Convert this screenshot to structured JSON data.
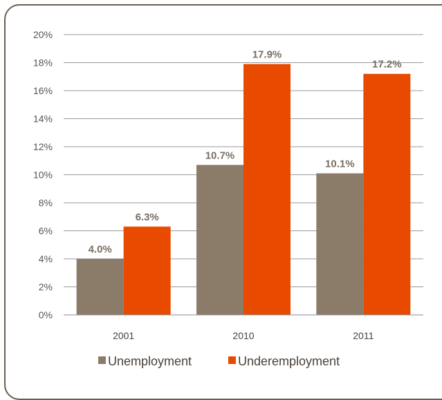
{
  "chart_data": {
    "type": "bar",
    "categories": [
      "2001",
      "2010",
      "2011"
    ],
    "series": [
      {
        "name": "Unemployment",
        "values": [
          4.0,
          10.7,
          10.1
        ],
        "labels": [
          "4.0%",
          "10.7%",
          "10.1%"
        ],
        "color": "#8b7b69"
      },
      {
        "name": "Underemployment",
        "values": [
          6.3,
          17.9,
          17.2
        ],
        "labels": [
          "6.3%",
          "17.9%",
          "17.2%"
        ],
        "color": "#e84a00"
      }
    ],
    "ylim": [
      0,
      20
    ],
    "yticks": [
      "0%",
      "2%",
      "4%",
      "6%",
      "8%",
      "10%",
      "12%",
      "14%",
      "16%",
      "18%",
      "20%"
    ],
    "grid": true,
    "legend_position": "bottom"
  }
}
